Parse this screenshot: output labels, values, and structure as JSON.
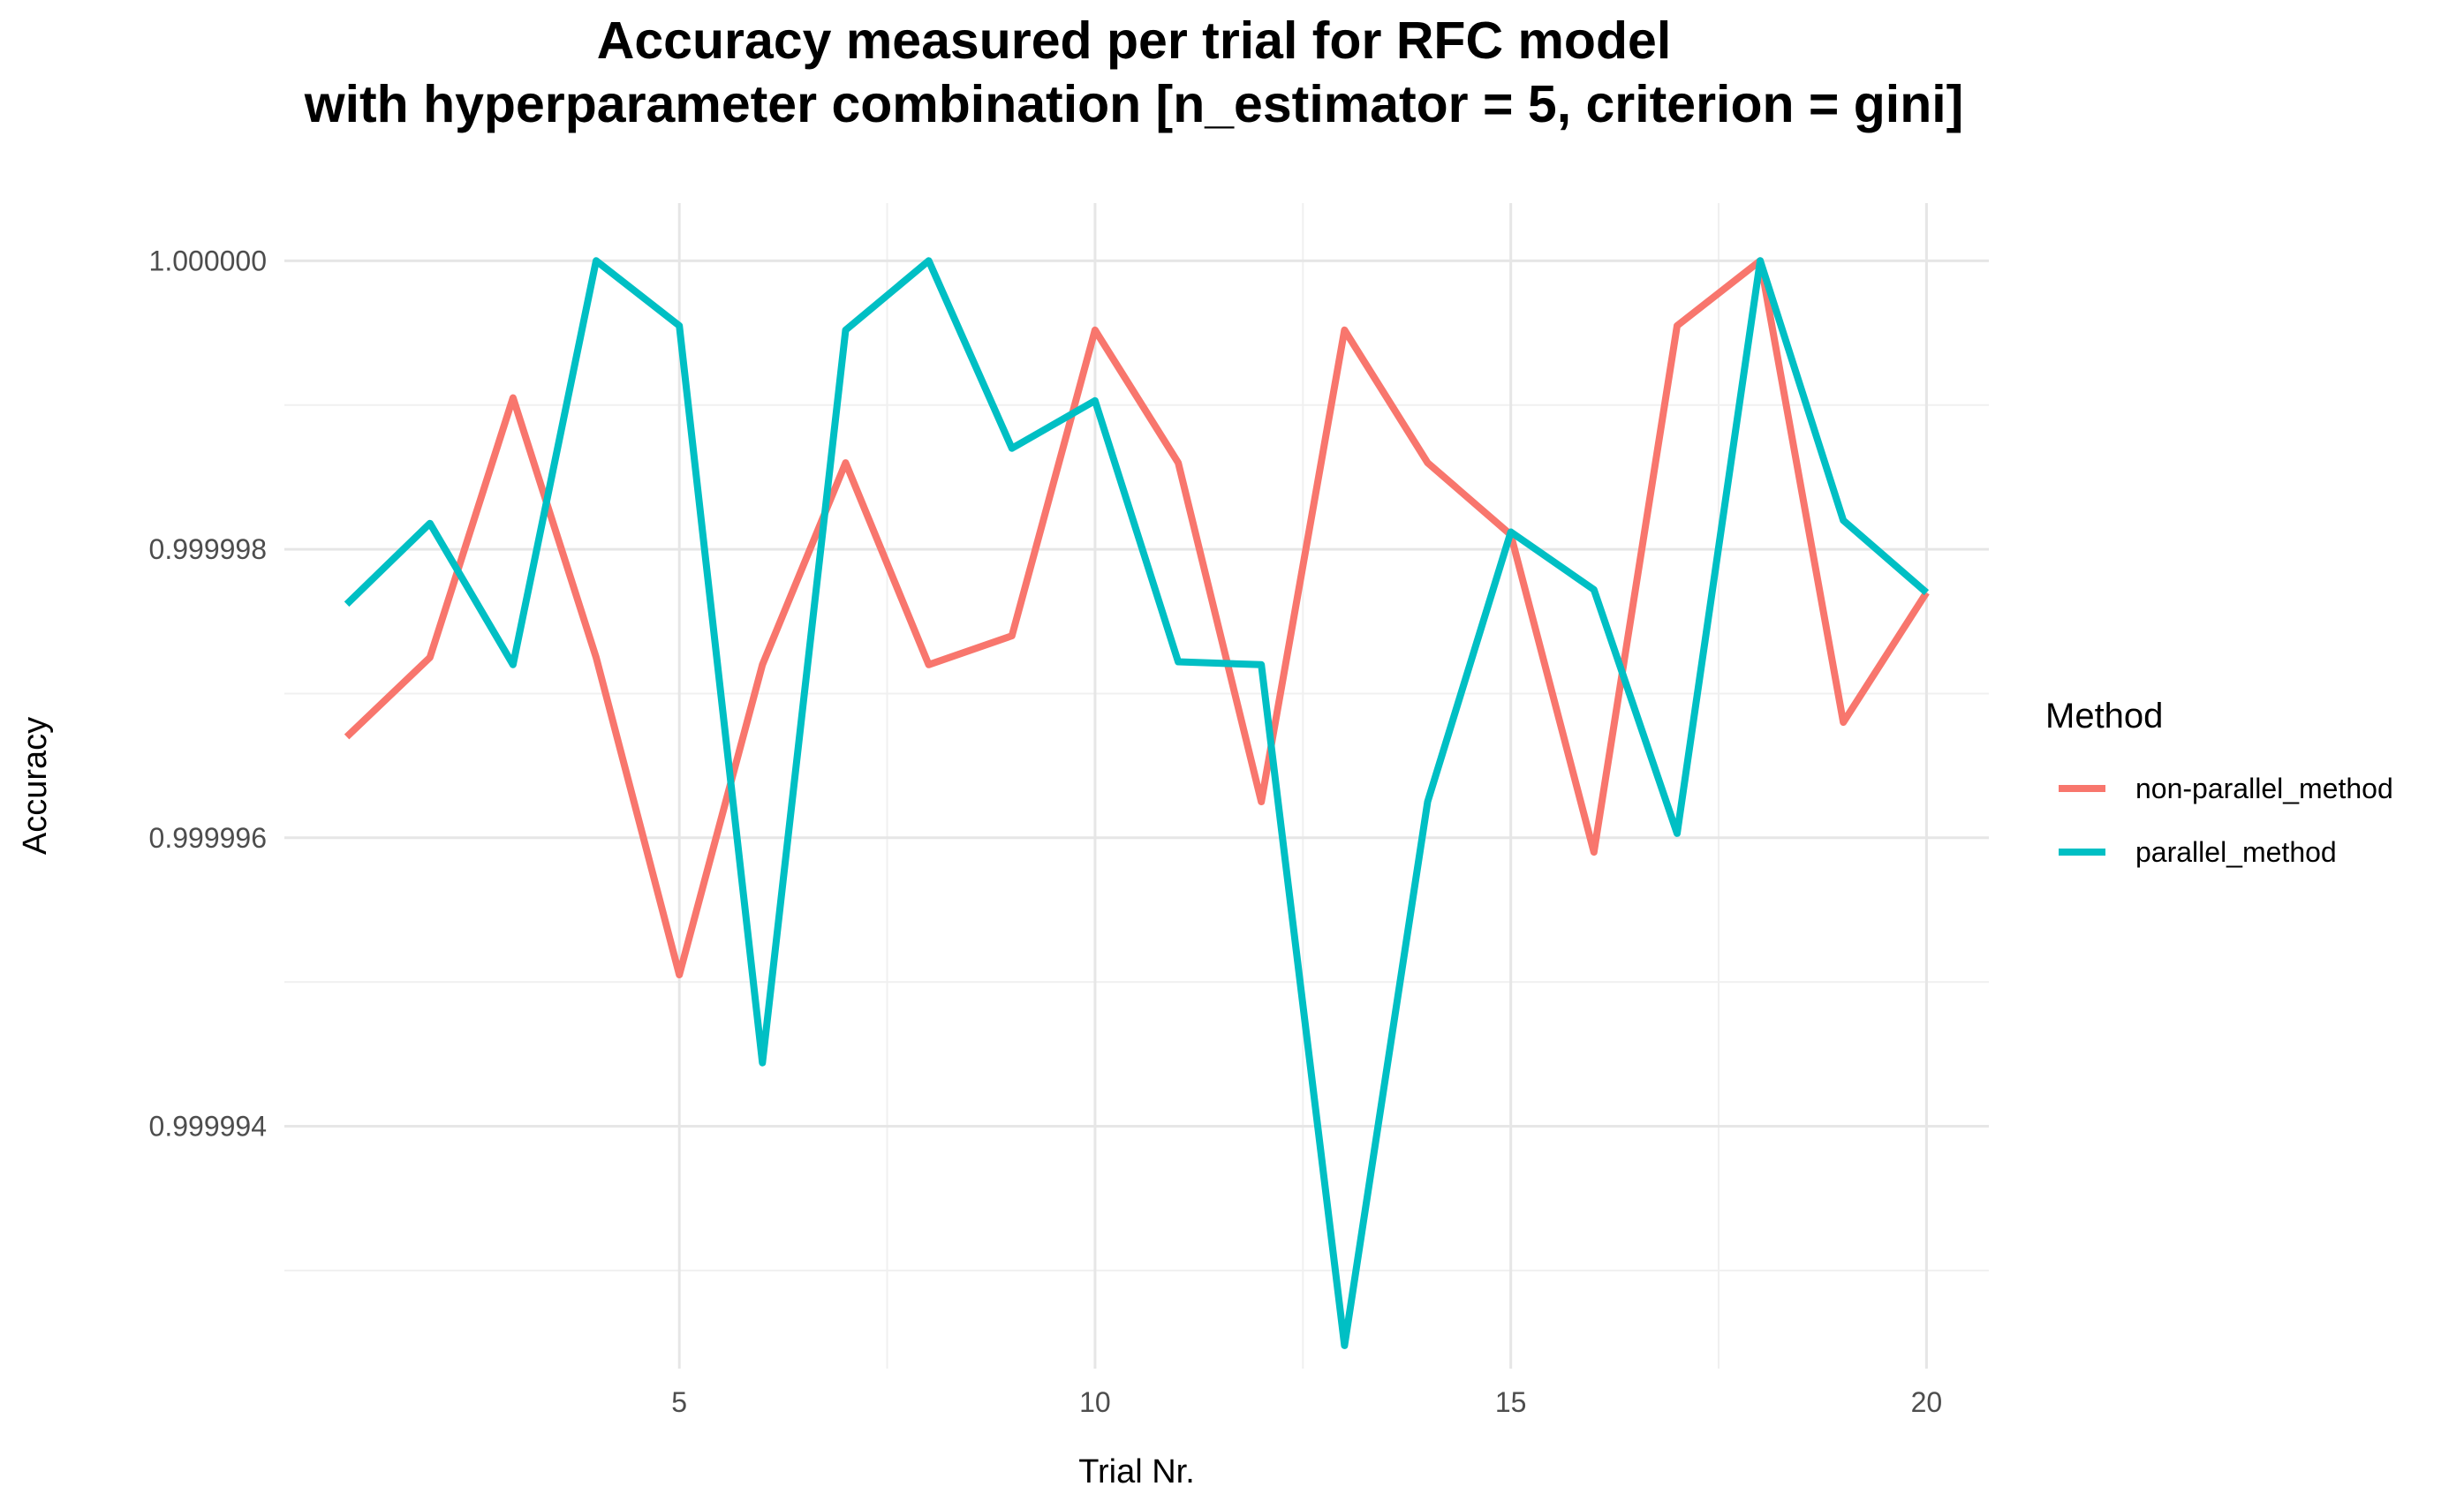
{
  "chart_data": {
    "type": "line",
    "title": "Accuracy measured per trial for RFC model",
    "subtitle": "with hyperparameter combination [n_estimator = 5, criterion = gini]",
    "xlabel": "Trial Nr.",
    "ylabel": "Accuracy",
    "xlim": [
      0.25,
      20.75
    ],
    "ylim": [
      0.99999232,
      1.0000004
    ],
    "x_ticks": [
      5,
      10,
      15,
      20
    ],
    "x_tick_labels": [
      "5",
      "10",
      "15",
      "20"
    ],
    "y_ticks": [
      0.999994,
      0.999996,
      0.999998,
      1.0
    ],
    "y_tick_labels": [
      "0.999994",
      "0.999996",
      "0.999998",
      "1.000000"
    ],
    "grid": true,
    "legend": {
      "title": "Method",
      "position": "right"
    },
    "x": [
      1,
      2,
      3,
      4,
      5,
      6,
      7,
      8,
      9,
      10,
      11,
      12,
      13,
      14,
      15,
      16,
      17,
      18,
      19,
      20
    ],
    "series": [
      {
        "name": "non-parallel_method",
        "color": "#F8766D",
        "values": [
          0.9999967,
          0.99999725,
          0.99999905,
          0.99999725,
          0.99999505,
          0.9999972,
          0.9999986,
          0.9999972,
          0.9999974,
          0.99999952,
          0.9999986,
          0.99999625,
          0.99999952,
          0.9999986,
          0.9999981,
          0.9999959,
          0.99999955,
          1.0,
          0.9999968,
          0.9999977
        ]
      },
      {
        "name": "parallel_method",
        "color": "#00BFC4",
        "values": [
          0.99999762,
          0.99999818,
          0.9999972,
          1.0,
          0.99999955,
          0.99999444,
          0.99999952,
          1.0,
          0.9999987,
          0.99999903,
          0.99999722,
          0.9999972,
          0.99999248,
          0.99999625,
          0.99999812,
          0.99999772,
          0.99999603,
          1.0,
          0.9999982,
          0.9999977
        ]
      }
    ]
  }
}
